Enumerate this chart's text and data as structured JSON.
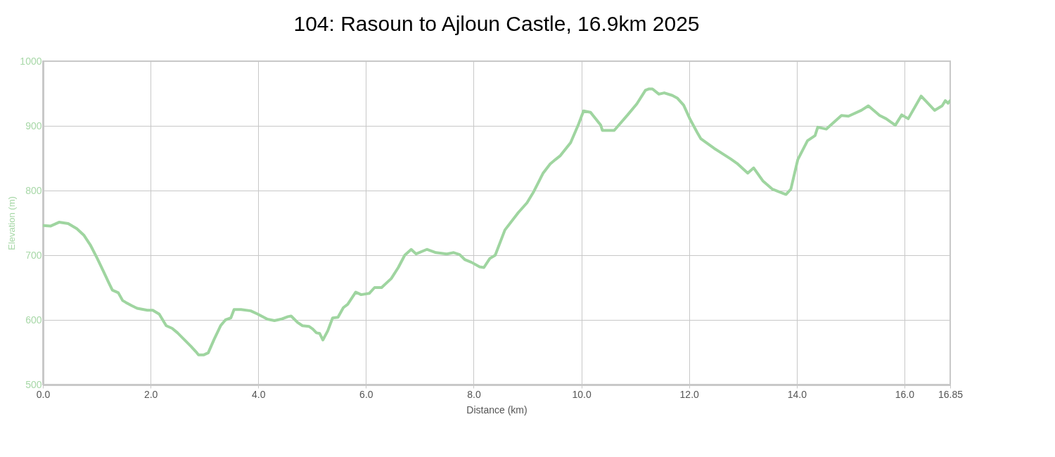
{
  "chart_data": {
    "type": "line",
    "title": "104: Rasoun to Ajloun Castle, 16.9km 2025",
    "xlabel": "Distance (km)",
    "ylabel": "Elevation (m)",
    "x": [
      0,
      0.14,
      0.3,
      0.47,
      0.63,
      0.76,
      0.88,
      1.01,
      1.13,
      1.22,
      1.29,
      1.4,
      1.48,
      1.54,
      1.65,
      1.75,
      1.94,
      2.04,
      2.16,
      2.29,
      2.4,
      2.5,
      2.62,
      2.75,
      2.84,
      2.89,
      2.99,
      3.07,
      3.18,
      3.3,
      3.39,
      3.49,
      3.55,
      3.68,
      3.86,
      3.99,
      4.17,
      4.3,
      4.42,
      4.55,
      4.61,
      4.73,
      4.82,
      4.94,
      5.01,
      5.08,
      5.14,
      5.2,
      5.29,
      5.38,
      5.48,
      5.58,
      5.66,
      5.81,
      5.91,
      6.06,
      6.16,
      6.29,
      6.47,
      6.6,
      6.72,
      6.84,
      6.93,
      7.13,
      7.3,
      7.5,
      7.63,
      7.74,
      7.84,
      7.96,
      8.11,
      8.19,
      8.3,
      8.4,
      8.58,
      8.83,
      8.99,
      9.12,
      9.29,
      9.42,
      9.52,
      9.61,
      9.8,
      9.95,
      10.04,
      10.17,
      10.36,
      10.39,
      10.61,
      10.86,
      11.03,
      11.19,
      11.25,
      11.32,
      11.44,
      11.54,
      11.69,
      11.78,
      11.9,
      12.02,
      12.15,
      12.22,
      12.47,
      12.77,
      12.89,
      13.09,
      13.2,
      13.37,
      13.55,
      13.8,
      13.89,
      14.02,
      14.2,
      14.34,
      14.39,
      14.55,
      14.83,
      14.96,
      15.2,
      15.33,
      15.54,
      15.66,
      15.83,
      15.95,
      16.07,
      16.31,
      16.56,
      16.7,
      16.76,
      16.81,
      16.85
    ],
    "series": [
      {
        "color": "#9fd5a0",
        "values": [
          746,
          745,
          751,
          749,
          741,
          731,
          716,
          695,
          674,
          658,
          646,
          642,
          630,
          627,
          622,
          618,
          615,
          615,
          609,
          591,
          587,
          580,
          570,
          559,
          551,
          546,
          546,
          549,
          570,
          591,
          600,
          603,
          616,
          616,
          614,
          609,
          601,
          599,
          601,
          605,
          606,
          596,
          591,
          590,
          586,
          580,
          579,
          569,
          583,
          603,
          604,
          619,
          624,
          643,
          639,
          641,
          650,
          650,
          664,
          681,
          700,
          709,
          702,
          709,
          704,
          702,
          704,
          701,
          693,
          689,
          682,
          681,
          695,
          700,
          739,
          766,
          781,
          799,
          827,
          841,
          848,
          854,
          874,
          903,
          923,
          921,
          901,
          893,
          893,
          917,
          934,
          955,
          957,
          957,
          949,
          951,
          947,
          943,
          932,
          910,
          890,
          880,
          865,
          849,
          842,
          827,
          835,
          815,
          802,
          794,
          802,
          848,
          877,
          885,
          898,
          895,
          916,
          915,
          924,
          931,
          916,
          911,
          901,
          917,
          911,
          946,
          924,
          931,
          939,
          935,
          939
        ]
      }
    ],
    "xlim": [
      0,
      16.85
    ],
    "xticks": [
      {
        "value": 0,
        "label": "0.0"
      },
      {
        "value": 2,
        "label": "2.0"
      },
      {
        "value": 4,
        "label": "4.0"
      },
      {
        "value": 6,
        "label": "6.0"
      },
      {
        "value": 8,
        "label": "8.0"
      },
      {
        "value": 10,
        "label": "10.0"
      },
      {
        "value": 12,
        "label": "12.0"
      },
      {
        "value": 14,
        "label": "14.0"
      },
      {
        "value": 16,
        "label": "16.0"
      },
      16.85
    ],
    "ylim": [
      500,
      1000
    ],
    "yticks": [
      500,
      600,
      700,
      800,
      900,
      1000
    ],
    "grid": true,
    "marker": "none",
    "line_style": "solid"
  }
}
